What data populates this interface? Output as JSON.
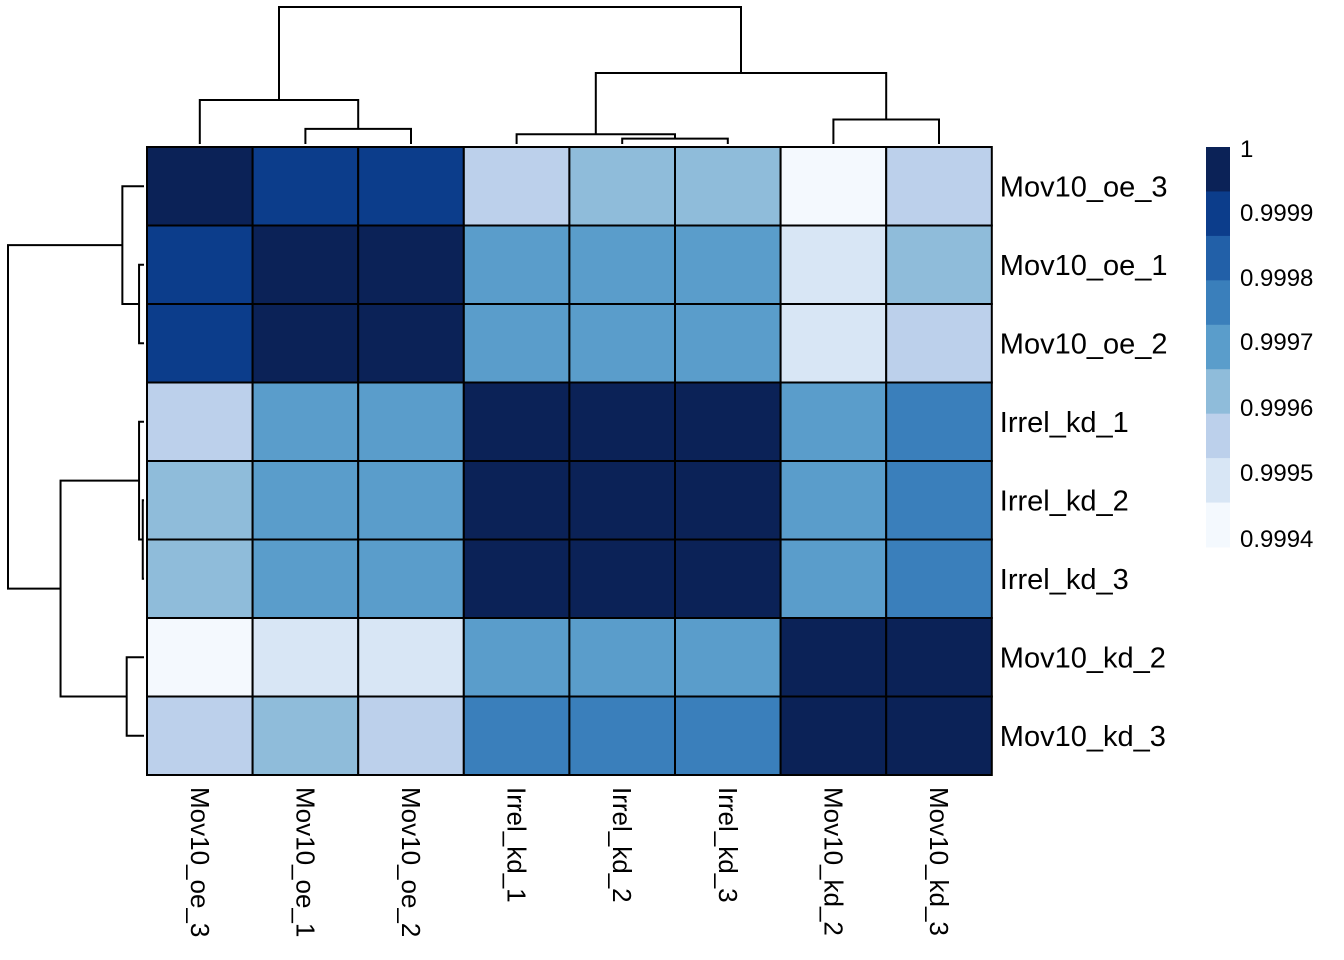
{
  "chart_data": {
    "type": "heatmap",
    "rows": [
      "Mov10_oe_3",
      "Mov10_oe_1",
      "Mov10_oe_2",
      "Irrel_kd_1",
      "Irrel_kd_2",
      "Irrel_kd_3",
      "Mov10_kd_2",
      "Mov10_kd_3"
    ],
    "columns": [
      "Mov10_oe_3",
      "Mov10_oe_1",
      "Mov10_oe_2",
      "Irrel_kd_1",
      "Irrel_kd_2",
      "Irrel_kd_3",
      "Mov10_kd_2",
      "Mov10_kd_3"
    ],
    "values": [
      [
        1.0,
        0.9999,
        0.9999,
        0.99955,
        0.99965,
        0.99965,
        0.99935,
        0.99955
      ],
      [
        0.9999,
        1.0,
        1.0,
        0.99972,
        0.99972,
        0.99972,
        0.99945,
        0.99965
      ],
      [
        0.9999,
        1.0,
        1.0,
        0.99972,
        0.99972,
        0.99972,
        0.99945,
        0.99955
      ],
      [
        0.99955,
        0.99972,
        0.99972,
        1.0,
        1.0,
        1.0,
        0.99972,
        0.99978
      ],
      [
        0.99965,
        0.99972,
        0.99972,
        1.0,
        1.0,
        1.0,
        0.99972,
        0.99978
      ],
      [
        0.99965,
        0.99972,
        0.99972,
        1.0,
        1.0,
        1.0,
        0.99972,
        0.99978
      ],
      [
        0.99935,
        0.99945,
        0.99945,
        0.99972,
        0.99972,
        0.99972,
        1.0,
        1.0
      ],
      [
        0.99955,
        0.99965,
        0.99955,
        0.99978,
        0.99978,
        0.99978,
        1.0,
        1.0
      ]
    ],
    "color_scale": {
      "breaks": [
        "1",
        "0.9999",
        "0.9998",
        "0.9997",
        "0.9996",
        "0.9995",
        "0.9994"
      ],
      "colors": [
        "#0b2257",
        "#0c3d8b",
        "#2260a8",
        "#3a7fbb",
        "#5a9dcb",
        "#8fbcda",
        "#bcd0eb",
        "#d8e6f5",
        "#f4f9fe"
      ]
    },
    "column_dendrogram": [
      [
        1,
        2,
        0.31
      ],
      [
        0,
        8,
        0.9
      ],
      [
        4,
        5,
        0.11
      ],
      [
        3,
        10,
        0.2
      ],
      [
        6,
        7,
        0.5
      ],
      [
        11,
        12,
        1.45
      ],
      [
        9,
        13,
        2.8
      ]
    ],
    "row_dendrogram": [
      [
        1,
        2,
        0.08
      ],
      [
        0,
        8,
        0.35
      ],
      [
        4,
        5,
        0.02
      ],
      [
        3,
        10,
        0.08
      ],
      [
        6,
        7,
        0.28
      ],
      [
        11,
        12,
        1.35
      ],
      [
        9,
        13,
        2.2
      ]
    ],
    "title": "",
    "xlabel": "",
    "ylabel": "",
    "grid": true
  }
}
